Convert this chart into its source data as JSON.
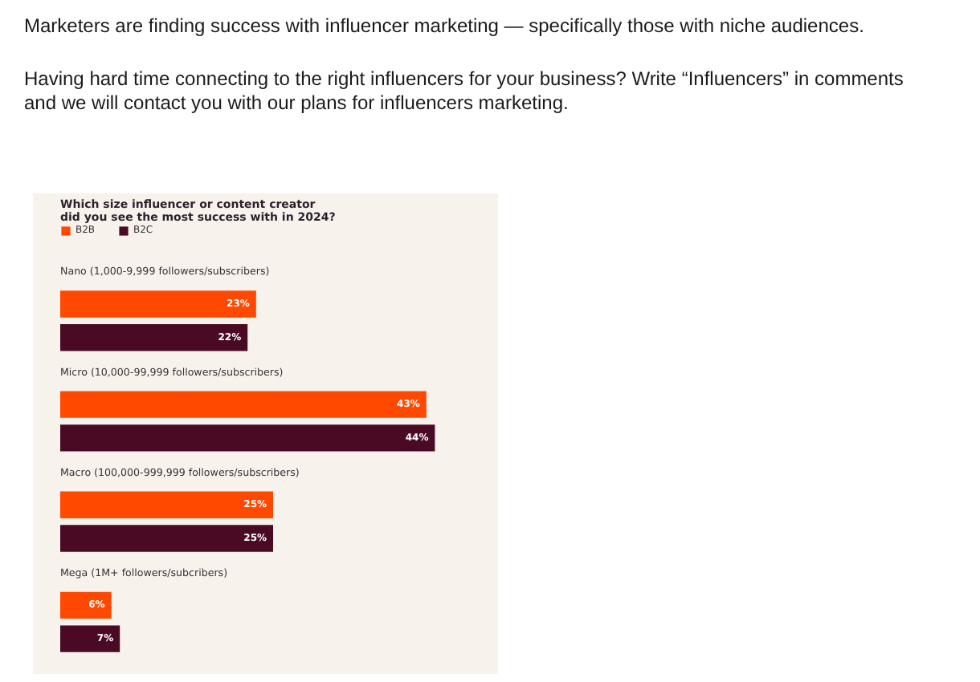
{
  "chart_data": {
    "type": "bar",
    "orientation": "horizontal",
    "title": "Which size influencer or content creator did you see the most success with in 2024?",
    "annotations": [
      "Marketers are finding success with influencer marketing — specifically those with niche audiences.",
      "Having hard time connecting to the right influencers for your business? Write “Influencers” in comments and we will contact you with our plans for influencers marketing."
    ],
    "categories": [
      "Nano (1,000-9,999 followers/subscribers)",
      "Micro (10,000-99,999 followers/subscribers)",
      "Macro (100,000-999,999 followers/subscribers)",
      "Mega (1M+ followers/subcribers)"
    ],
    "series": [
      {
        "name": "B2B",
        "color": "#ff4800",
        "values": [
          23,
          43,
          25,
          6
        ],
        "value_labels": [
          "23%",
          "43%",
          "25%",
          "6%"
        ]
      },
      {
        "name": "B2C",
        "color": "#4a0a24",
        "values": [
          22,
          44,
          25,
          7
        ],
        "value_labels": [
          "22%",
          "44%",
          "25%",
          "7%"
        ]
      }
    ],
    "xlim": [
      0,
      50
    ],
    "legend": "top left",
    "tick_labels": false
  }
}
